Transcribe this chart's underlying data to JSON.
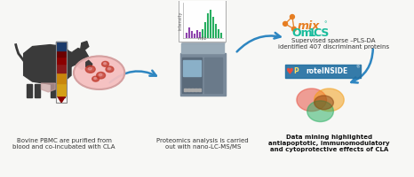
{
  "bg_color": "#f7f7f5",
  "text1": "Bovine PBMC are purified from\nblood and co-incubated with CLA",
  "text2": "Proteomics analysis is carried\nout with nano-LC-MS/MS",
  "text3": "Supervised sparse –PLS-DA\nidentified 407 discriminant proteins",
  "text4": "Data mining highlighted\nantiapoptotic, immunomodulatory\nand cytoprotective effects of CLA",
  "arrow_color": "#2e86c1",
  "text_color": "#333333",
  "text_bold_color": "#111111",
  "cow_color": "#3a3a3a",
  "tube_cap_color": "#1a3a6b",
  "tube_body_colors": [
    "#d4a017",
    "#c8860c",
    "#8b1a1a",
    "#8b0000",
    "#6b0000"
  ],
  "petri_color": "#f5c0c0",
  "petri_edge": "#d4a0a0",
  "cell_color": "#c0392b",
  "spec_border": "#aaaaaa",
  "purple_color": "#8e44ad",
  "green_color": "#27ae60",
  "instrument_color": "#8a9cb0",
  "mix_color": "#e67e22",
  "omics_color": "#1abc9c",
  "proteinside_bg": "#2471a3",
  "venn_colors": [
    "#e74c3c",
    "#f39c12",
    "#27ae60",
    "#8b4513"
  ],
  "fig_w": 4.66,
  "fig_h": 2.0,
  "dpi": 100
}
